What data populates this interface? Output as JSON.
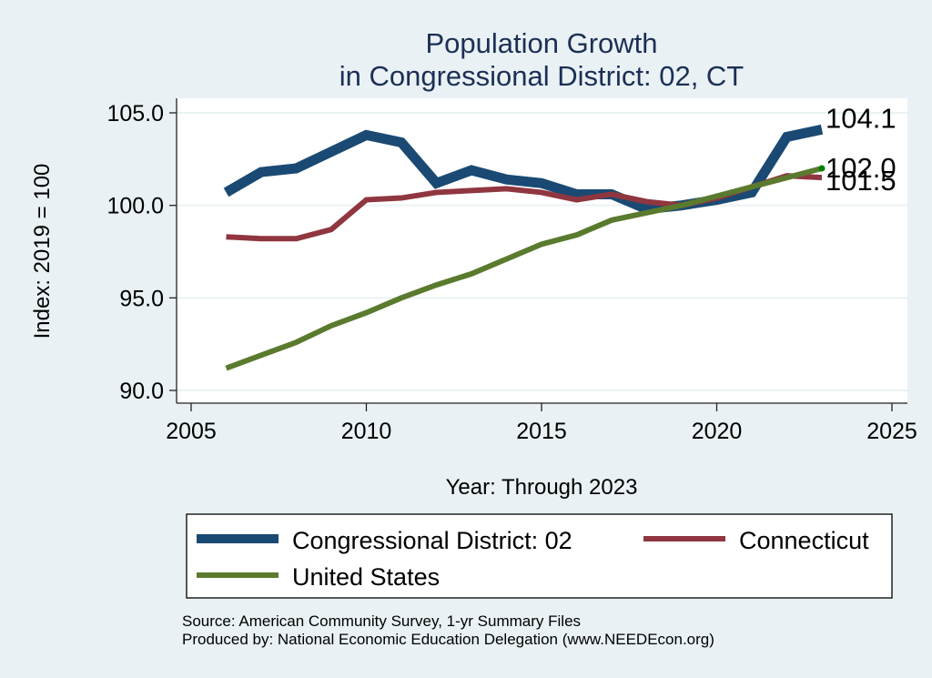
{
  "chart_data": {
    "type": "line",
    "title": [
      "Population Growth",
      "in Congressional District: 02, CT"
    ],
    "xlabel": "Year: Through 2023",
    "ylabel": "Index: 2019 = 100",
    "xlim": [
      2005,
      2025
    ],
    "ylim": [
      90,
      105
    ],
    "xticks": [
      2005,
      2010,
      2015,
      2020,
      2025
    ],
    "yticks": [
      90,
      95,
      100,
      105
    ],
    "ytick_labels": [
      "90.0",
      "95.0",
      "100.0",
      "105.0"
    ],
    "xtick_labels": [
      "2005",
      "2010",
      "2015",
      "2020",
      "2025"
    ],
    "grid": true,
    "x": [
      2006,
      2007,
      2008,
      2009,
      2010,
      2011,
      2012,
      2013,
      2014,
      2015,
      2016,
      2017,
      2018,
      2019,
      2020,
      2021,
      2022,
      2023
    ],
    "series": [
      {
        "name": "Congressional District: 02",
        "color": "#1a4a73",
        "values": [
          100.7,
          101.8,
          102.0,
          102.9,
          103.8,
          103.4,
          101.2,
          101.9,
          101.4,
          101.2,
          100.6,
          100.6,
          99.8,
          100.0,
          100.3,
          100.7,
          103.7,
          104.1
        ],
        "end_label": "104.1"
      },
      {
        "name": "Connecticut",
        "color": "#903640",
        "values": [
          98.3,
          98.2,
          98.2,
          98.7,
          100.3,
          100.4,
          100.7,
          100.8,
          100.9,
          100.7,
          100.3,
          100.6,
          100.2,
          100.0,
          100.4,
          101.0,
          101.6,
          101.5
        ],
        "end_label": "101.5"
      },
      {
        "name": "United States",
        "color": "#5a7a2e",
        "values": [
          91.2,
          91.9,
          92.6,
          93.5,
          94.2,
          95.0,
          95.7,
          96.3,
          97.1,
          97.9,
          98.4,
          99.2,
          99.6,
          100.0,
          100.5,
          101.0,
          101.5,
          102.0
        ],
        "end_label": "102.0"
      }
    ],
    "legend": {
      "placement": "bottom",
      "entries": [
        "Congressional District: 02",
        "Connecticut",
        "United States"
      ]
    },
    "notes": [
      "Source: American Community Survey, 1-yr Summary Files",
      "Produced by: National Economic Education Delegation (www.NEEDEcon.org)"
    ]
  },
  "colors": {
    "background": "#e9f1f4",
    "plot_background": "#ffffff",
    "gridline": "#eaf2f3",
    "title": "#1c2f55",
    "endpoint_marker": "#008000"
  }
}
